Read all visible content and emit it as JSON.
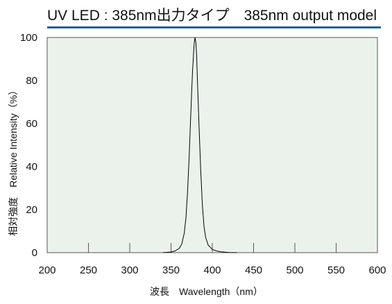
{
  "chart_data": {
    "type": "line",
    "title": "UV LED : 385nm出力タイプ　385nm output model",
    "xlabel": "波長　Wavelength（nm）",
    "ylabel": "相対強度　Relative Intensity（%）",
    "xlim": [
      200,
      600
    ],
    "ylim": [
      0,
      100
    ],
    "x_ticks": [
      200,
      250,
      300,
      350,
      400,
      450,
      500,
      550,
      600
    ],
    "y_ticks": [
      0,
      20,
      40,
      60,
      80,
      100
    ],
    "grid": false,
    "colors": {
      "plot_background": "#ebf2eb",
      "title_rule": "#1f5fa8",
      "line": "#000000"
    },
    "series": [
      {
        "x": [
          340,
          350,
          355,
          360,
          363,
          366,
          368,
          370,
          372,
          374,
          376,
          378,
          379,
          380,
          381,
          382,
          384,
          386,
          388,
          390,
          392,
          395,
          400,
          405,
          410,
          420,
          430
        ],
        "y": [
          0,
          0.3,
          0.8,
          2,
          4,
          9,
          16,
          28,
          45,
          65,
          84,
          97,
          100,
          98,
          92,
          80,
          58,
          38,
          22,
          12,
          7,
          3.5,
          1.5,
          0.8,
          0.4,
          0.1,
          0
        ]
      }
    ]
  }
}
